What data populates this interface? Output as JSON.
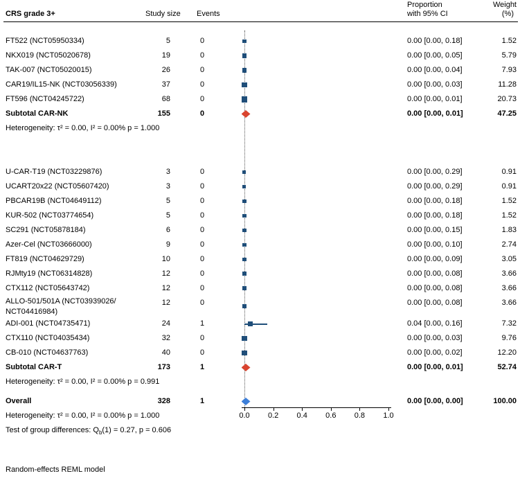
{
  "header": {
    "title_column": "CRS grade 3+",
    "study_size": "Study size",
    "events": "Events",
    "proportion_line1": "Proportion",
    "proportion_line2": "with 95% CI",
    "weight_line1": "Weight",
    "weight_line2": "(%)"
  },
  "footer": "Random-effects REML model",
  "colors": {
    "square": "#1f4e79",
    "ci_line": "#1f4e79",
    "subtotal_diamond": "#d9442f",
    "overall_diamond": "#3d7fd9",
    "axis": "#000000"
  },
  "chart_data": {
    "type": "scatter",
    "subtype": "forest-plot",
    "xlabel": "",
    "xlim": [
      0.0,
      1.0
    ],
    "x_ticks": [
      0.0,
      0.2,
      0.4,
      0.6,
      0.8,
      1.0
    ],
    "x_tick_labels": [
      "0.0",
      "0.2",
      "0.4",
      "0.6",
      "0.8",
      "1.0"
    ],
    "groups": [
      {
        "name": "CAR-NK",
        "studies": [
          {
            "label": "FT522 (NCT05950334)",
            "size": "5",
            "events": "0",
            "est": 0.0,
            "ci_low": 0.0,
            "ci_high": 0.18,
            "prop_text": "0.00 [0.00, 0.18]",
            "weight": 1.52,
            "weight_text": "1.52",
            "show_ci": false
          },
          {
            "label": "NKX019 (NCT05020678)",
            "size": "19",
            "events": "0",
            "est": 0.0,
            "ci_low": 0.0,
            "ci_high": 0.05,
            "prop_text": "0.00 [0.00, 0.05]",
            "weight": 5.79,
            "weight_text": "5.79",
            "show_ci": false
          },
          {
            "label": "TAK-007 (NCT05020015)",
            "size": "26",
            "events": "0",
            "est": 0.0,
            "ci_low": 0.0,
            "ci_high": 0.04,
            "prop_text": "0.00 [0.00, 0.04]",
            "weight": 7.93,
            "weight_text": "7.93",
            "show_ci": false
          },
          {
            "label": "CAR19/IL15-NK (NCT03056339)",
            "size": "37",
            "events": "0",
            "est": 0.0,
            "ci_low": 0.0,
            "ci_high": 0.03,
            "prop_text": "0.00 [0.00, 0.03]",
            "weight": 11.28,
            "weight_text": "11.28",
            "show_ci": false
          },
          {
            "label": "FT596 (NCT04245722)",
            "size": "68",
            "events": "0",
            "est": 0.0,
            "ci_low": 0.0,
            "ci_high": 0.01,
            "prop_text": "0.00 [0.00, 0.01]",
            "weight": 20.73,
            "weight_text": "20.73",
            "show_ci": false
          }
        ],
        "subtotal": {
          "label": "Subtotal CAR-NK",
          "size": "155",
          "events": "0",
          "est": 0.0,
          "ci_low": 0.0,
          "ci_high": 0.01,
          "prop_text": "0.00 [0.00, 0.01]",
          "weight_text": "47.25"
        },
        "heterogeneity": "Heterogeneity: τ² = 0.00, I² = 0.00% p = 1.000"
      },
      {
        "name": "CAR-T",
        "studies": [
          {
            "label": "U-CAR-T19 (NCT03229876)",
            "size": "3",
            "events": "0",
            "est": 0.0,
            "ci_low": 0.0,
            "ci_high": 0.29,
            "prop_text": "0.00 [0.00, 0.29]",
            "weight": 0.91,
            "weight_text": "0.91",
            "show_ci": false
          },
          {
            "label": "UCART20x22 (NCT05607420)",
            "size": "3",
            "events": "0",
            "est": 0.0,
            "ci_low": 0.0,
            "ci_high": 0.29,
            "prop_text": "0.00 [0.00, 0.29]",
            "weight": 0.91,
            "weight_text": "0.91",
            "show_ci": false
          },
          {
            "label": "PBCAR19B (NCT04649112)",
            "size": "5",
            "events": "0",
            "est": 0.0,
            "ci_low": 0.0,
            "ci_high": 0.18,
            "prop_text": "0.00 [0.00, 0.18]",
            "weight": 1.52,
            "weight_text": "1.52",
            "show_ci": false
          },
          {
            "label": "KUR-502 (NCT03774654)",
            "size": "5",
            "events": "0",
            "est": 0.0,
            "ci_low": 0.0,
            "ci_high": 0.18,
            "prop_text": "0.00 [0.00, 0.18]",
            "weight": 1.52,
            "weight_text": "1.52",
            "show_ci": false
          },
          {
            "label": "SC291 (NCT05878184)",
            "size": "6",
            "events": "0",
            "est": 0.0,
            "ci_low": 0.0,
            "ci_high": 0.15,
            "prop_text": "0.00 [0.00, 0.15]",
            "weight": 1.83,
            "weight_text": "1.83",
            "show_ci": false
          },
          {
            "label": "Azer-Cel (NCT03666000)",
            "size": "9",
            "events": "0",
            "est": 0.0,
            "ci_low": 0.0,
            "ci_high": 0.1,
            "prop_text": "0.00 [0.00, 0.10]",
            "weight": 2.74,
            "weight_text": "2.74",
            "show_ci": false
          },
          {
            "label": "FT819 (NCT04629729)",
            "size": "10",
            "events": "0",
            "est": 0.0,
            "ci_low": 0.0,
            "ci_high": 0.09,
            "prop_text": "0.00 [0.00, 0.09]",
            "weight": 3.05,
            "weight_text": "3.05",
            "show_ci": false
          },
          {
            "label": "RJMty19 (NCT06314828)",
            "size": "12",
            "events": "0",
            "est": 0.0,
            "ci_low": 0.0,
            "ci_high": 0.08,
            "prop_text": "0.00 [0.00, 0.08]",
            "weight": 3.66,
            "weight_text": "3.66",
            "show_ci": false
          },
          {
            "label": "CTX112 (NCT05643742)",
            "size": "12",
            "events": "0",
            "est": 0.0,
            "ci_low": 0.0,
            "ci_high": 0.08,
            "prop_text": "0.00 [0.00, 0.08]",
            "weight": 3.66,
            "weight_text": "3.66",
            "show_ci": false
          },
          {
            "label": "ALLO-501/501A (NCT03939026/",
            "label2": "NCT04416984)",
            "size": "12",
            "events": "0",
            "est": 0.0,
            "ci_low": 0.0,
            "ci_high": 0.08,
            "prop_text": "0.00 [0.00, 0.08]",
            "weight": 3.66,
            "weight_text": "3.66",
            "show_ci": false
          },
          {
            "label": "ADI-001 (NCT04735471)",
            "size": "24",
            "events": "1",
            "est": 0.04,
            "ci_low": 0.0,
            "ci_high": 0.16,
            "prop_text": "0.04 [0.00, 0.16]",
            "weight": 7.32,
            "weight_text": "7.32",
            "show_ci": true
          },
          {
            "label": "CTX110 (NCT04035434)",
            "size": "32",
            "events": "0",
            "est": 0.0,
            "ci_low": 0.0,
            "ci_high": 0.03,
            "prop_text": "0.00 [0.00, 0.03]",
            "weight": 9.76,
            "weight_text": "9.76",
            "show_ci": false
          },
          {
            "label": "CB-010 (NCT04637763)",
            "size": "40",
            "events": "0",
            "est": 0.0,
            "ci_low": 0.0,
            "ci_high": 0.02,
            "prop_text": "0.00 [0.00, 0.02]",
            "weight": 12.2,
            "weight_text": "12.20",
            "show_ci": false
          }
        ],
        "subtotal": {
          "label": "Subtotal CAR-T",
          "size": "173",
          "events": "1",
          "est": 0.0,
          "ci_low": 0.0,
          "ci_high": 0.01,
          "prop_text": "0.00 [0.00, 0.01]",
          "weight_text": "52.74"
        },
        "heterogeneity": "Heterogeneity: τ² = 0.00, I² = 0.00%  p = 0.991"
      }
    ],
    "overall": {
      "label": "Overall",
      "size": "328",
      "events": "1",
      "est": 0.0,
      "ci_low": 0.0,
      "ci_high": 0.0,
      "prop_text": "0.00 [0.00, 0.00]",
      "weight_text": "100.00"
    },
    "overall_heterogeneity": "Heterogeneity: τ² = 0.00, I² = 0.00%  p = 1.000",
    "group_difference": {
      "prefix": "Test of group differences: Q",
      "sub": "b",
      "suffix": "(1) = 0.27, p = 0.606"
    }
  }
}
